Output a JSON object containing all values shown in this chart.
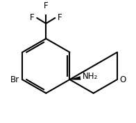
{
  "background_color": "#ffffff",
  "line_color": "#000000",
  "line_width": 1.5,
  "label_NH2": "NH₂",
  "label_O": "O",
  "label_Br": "Br",
  "label_F_top": "F",
  "label_F_left": "F",
  "label_F_right": "F",
  "font_size_labels": 8.5,
  "fig_width": 1.96,
  "fig_height": 1.78,
  "dpi": 100
}
